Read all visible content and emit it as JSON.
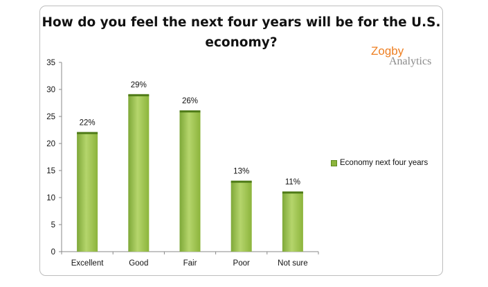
{
  "chart_data": {
    "type": "bar",
    "title": "How do you feel the next four years will be for the U.S. economy?",
    "categories": [
      "Excellent",
      "Good",
      "Fair",
      "Poor",
      "Not sure"
    ],
    "series": [
      {
        "name": "Economy next four years",
        "values": [
          22,
          29,
          26,
          13,
          11
        ],
        "labels": [
          "22%",
          "29%",
          "26%",
          "13%",
          "11%"
        ]
      }
    ],
    "ylim": [
      0,
      35
    ],
    "yticks": [
      "0",
      "5",
      "10",
      "15",
      "20",
      "25",
      "30",
      "35"
    ],
    "xlabel": "",
    "ylabel": "",
    "grid": false,
    "legend_position": "right",
    "colors": {
      "bar_light": "#b5d56c",
      "bar_mid": "#8cb43c",
      "bar_dark": "#5e8a1e",
      "bar_top": "#4e7a17",
      "axis": "#888888"
    }
  },
  "logo": {
    "line1": "Zogby",
    "line2": "Analytics"
  }
}
